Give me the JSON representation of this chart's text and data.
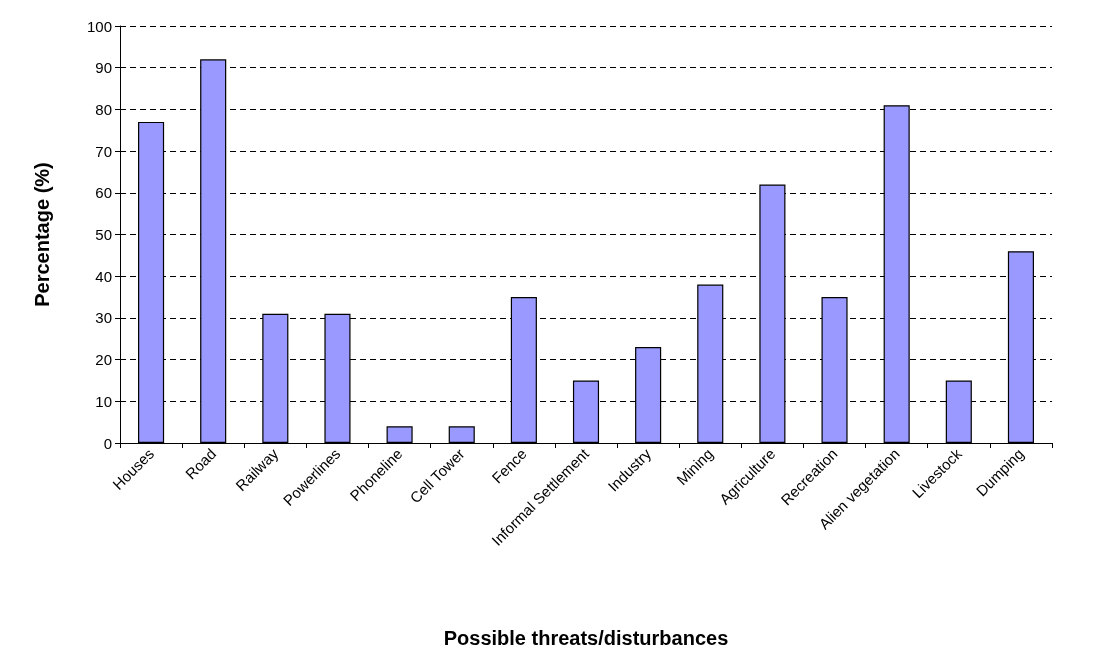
{
  "chart_data": {
    "type": "bar",
    "xlabel": "Possible threats/disturbances",
    "ylabel": "Percentage (%)",
    "categories": [
      "Houses",
      "Road",
      "Railway",
      "Powerlines",
      "Phoneline",
      "Cell Tower",
      "Fence",
      "Informal Settlement",
      "Industry",
      "Mining",
      "Agriculture",
      "Recreation",
      "Alien vegetation",
      "Livestock",
      "Dumping"
    ],
    "values": [
      77,
      92,
      31,
      31,
      4,
      4,
      35,
      15,
      23,
      38,
      62,
      35,
      81,
      15,
      46
    ],
    "color": "#9999ff",
    "ylim": [
      0,
      100
    ],
    "yticks": [
      0,
      10,
      20,
      30,
      40,
      50,
      60,
      70,
      80,
      90,
      100
    ],
    "grid": "y"
  }
}
